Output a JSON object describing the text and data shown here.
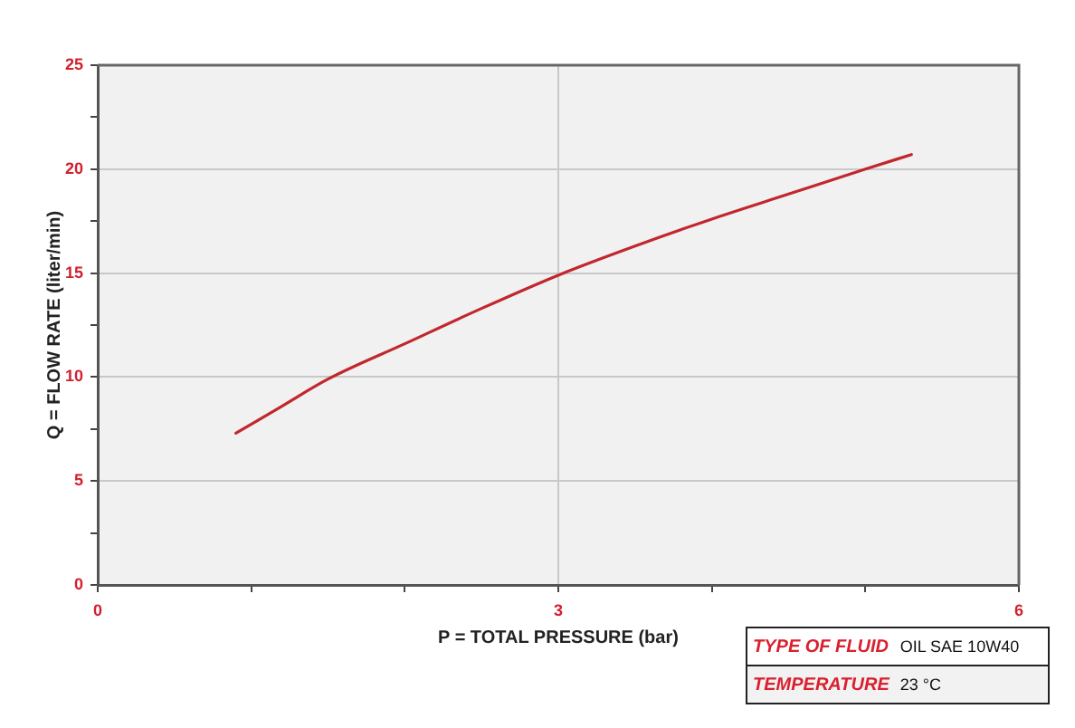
{
  "chart_data": {
    "type": "line",
    "xlabel": "P = TOTAL PRESSURE (bar)",
    "ylabel": "Q = FLOW RATE (liter/min)",
    "x": [
      0.9,
      1.2,
      1.5,
      2.0,
      2.5,
      3.0,
      3.5,
      4.0,
      4.5,
      5.0,
      5.3
    ],
    "values": [
      7.3,
      8.6,
      9.9,
      11.6,
      13.3,
      14.9,
      16.3,
      17.6,
      18.8,
      20.0,
      20.7
    ],
    "color": "#c1272d",
    "xlim": [
      0,
      6
    ],
    "ylim": [
      0,
      25
    ],
    "xticks": [
      0,
      {
        "value": 1,
        "label": null
      },
      {
        "value": 2,
        "label": null
      },
      3,
      {
        "value": 4,
        "label": null
      },
      {
        "value": 5,
        "label": null
      },
      6
    ],
    "yticks": [
      0,
      {
        "value": 2.5,
        "label": null
      },
      5,
      {
        "value": 7.5,
        "label": null
      },
      10,
      {
        "value": 12.5,
        "label": null
      },
      15,
      {
        "value": 17.5,
        "label": null
      },
      20,
      {
        "value": 22.5,
        "label": null
      },
      25
    ],
    "grid": true,
    "marker": "none",
    "line_style": "solid",
    "annotations": [
      "TYPE OF FLUID",
      "OIL SAE 10W40",
      "TEMPERATURE",
      "23 °C"
    ]
  }
}
